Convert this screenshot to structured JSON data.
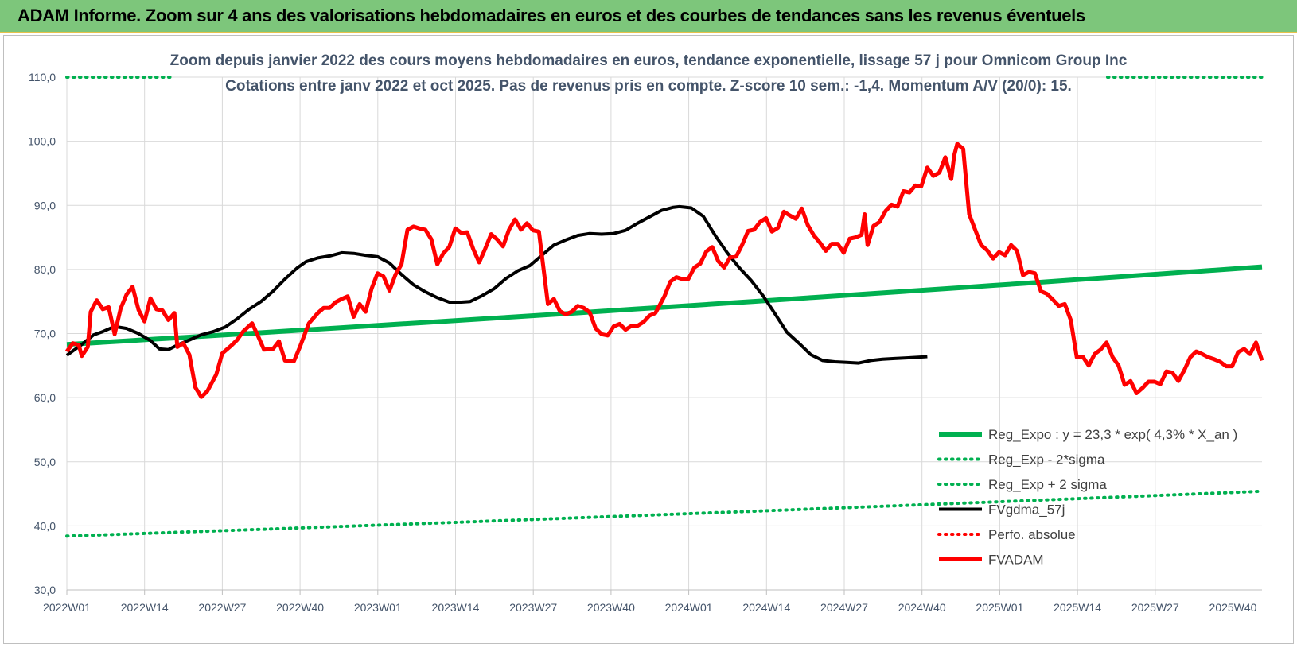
{
  "header": {
    "title": "ADAM Informe. Zoom sur 4 ans des valorisations hebdomadaires en euros et des courbes de tendances sans les revenus éventuels"
  },
  "chart_data": {
    "type": "line",
    "title": "Zoom depuis janvier 2022 des cours moyens hebdomadaires en euros, tendance exponentielle, lissage 57 j pour Omnicom Group Inc",
    "subtitle": "Cotations entre janv 2022 et oct 2025. Pas de revenus pris en compte. Z-score 10 sem.: -1,4. Momentum A/V (20/0): 15.",
    "xlabel": "",
    "ylabel": "",
    "ylim": [
      30,
      110
    ],
    "yticks": [
      "30,0",
      "40,0",
      "50,0",
      "60,0",
      "70,0",
      "80,0",
      "90,0",
      "100,0",
      "110,0"
    ],
    "x_tick_labels": [
      "2022W01",
      "2022W14",
      "2022W27",
      "2022W40",
      "2023W01",
      "2023W14",
      "2023W27",
      "2023W40",
      "2024W01",
      "2024W14",
      "2024W27",
      "2024W40",
      "2025W01",
      "2025W14",
      "2025W27",
      "2025W40"
    ],
    "n_weeks": 198,
    "grid": true,
    "legend_position": "bottom-right",
    "series": [
      {
        "name": "Reg_Expo : y = 23,3 * exp( 4,3% * X_an )",
        "color": "#00b050",
        "style": "solid",
        "start": 68.3,
        "end": 80.4
      },
      {
        "name": "Reg_Exp - 2*sigma",
        "color": "#00b050",
        "style": "dotted",
        "start": 38.4,
        "end": 45.4
      },
      {
        "name": "Reg_Exp + 2 sigma",
        "color": "#00b050",
        "style": "dotted",
        "start": 110.0,
        "end": 110.0
      },
      {
        "name": "FVgdma_57j",
        "color": "#000000",
        "style": "solid",
        "points": [
          [
            0,
            66.6
          ],
          [
            5,
            68.3
          ],
          [
            9,
            69.8
          ],
          [
            12,
            70.3
          ],
          [
            16,
            71.1
          ],
          [
            20,
            70.8
          ],
          [
            24,
            70.0
          ],
          [
            28,
            68.9
          ],
          [
            31,
            67.6
          ],
          [
            34,
            67.5
          ],
          [
            37,
            68.2
          ],
          [
            41,
            69.0
          ],
          [
            45,
            69.8
          ],
          [
            49,
            70.3
          ],
          [
            53,
            71.0
          ],
          [
            57,
            72.3
          ],
          [
            61,
            73.8
          ],
          [
            65,
            75.0
          ],
          [
            69,
            76.6
          ],
          [
            73,
            78.5
          ],
          [
            77,
            80.2
          ],
          [
            80,
            81.2
          ],
          [
            84,
            81.8
          ],
          [
            88,
            82.1
          ],
          [
            92,
            82.6
          ],
          [
            96,
            82.5
          ],
          [
            100,
            82.2
          ],
          [
            104,
            82.0
          ],
          [
            108,
            81.0
          ],
          [
            112,
            79.2
          ],
          [
            116,
            77.6
          ],
          [
            120,
            76.5
          ],
          [
            124,
            75.6
          ],
          [
            128,
            74.9
          ],
          [
            132,
            74.9
          ],
          [
            135,
            75.0
          ],
          [
            139,
            75.9
          ],
          [
            143,
            77.0
          ],
          [
            147,
            78.6
          ],
          [
            151,
            79.8
          ],
          [
            155,
            80.6
          ],
          [
            159,
            82.2
          ],
          [
            163,
            83.8
          ],
          [
            167,
            84.6
          ],
          [
            171,
            85.3
          ],
          [
            175,
            85.6
          ],
          [
            179,
            85.5
          ],
          [
            183,
            85.6
          ],
          [
            187,
            86.1
          ],
          [
            191,
            87.2
          ],
          [
            195,
            88.2
          ],
          [
            199,
            89.2
          ],
          [
            203,
            89.7
          ],
          [
            205,
            89.8
          ],
          [
            209,
            89.6
          ],
          [
            213,
            88.3
          ],
          [
            217,
            85.3
          ],
          [
            221,
            82.6
          ],
          [
            225,
            80.3
          ],
          [
            229,
            78.3
          ],
          [
            233,
            75.9
          ],
          [
            237,
            73.1
          ],
          [
            241,
            70.2
          ],
          [
            245,
            68.5
          ],
          [
            249,
            66.7
          ],
          [
            253,
            65.8
          ],
          [
            257,
            65.6
          ],
          [
            261,
            65.5
          ],
          [
            265,
            65.4
          ],
          [
            269,
            65.8
          ],
          [
            273,
            66.0
          ],
          [
            277,
            66.1
          ],
          [
            281,
            66.2
          ],
          [
            285,
            66.3
          ],
          [
            288,
            66.4
          ]
        ]
      },
      {
        "name": "Perfo. absolue",
        "color": "#ff0000",
        "style": "dotted",
        "points": []
      },
      {
        "name": "FVADAM",
        "color": "#ff0000",
        "style": "solid",
        "points": [
          [
            0,
            67.2
          ],
          [
            2,
            68.5
          ],
          [
            4,
            68.2
          ],
          [
            5,
            66.5
          ],
          [
            7,
            67.9
          ],
          [
            8,
            73.4
          ],
          [
            10,
            75.2
          ],
          [
            12,
            73.8
          ],
          [
            14,
            74.1
          ],
          [
            16,
            69.9
          ],
          [
            18,
            73.9
          ],
          [
            20,
            76.1
          ],
          [
            22,
            77.3
          ],
          [
            24,
            73.7
          ],
          [
            26,
            71.9
          ],
          [
            28,
            75.5
          ],
          [
            30,
            73.8
          ],
          [
            32,
            73.6
          ],
          [
            34,
            72.1
          ],
          [
            36,
            73.2
          ],
          [
            37,
            67.9
          ],
          [
            39,
            68.5
          ],
          [
            41,
            66.7
          ],
          [
            43,
            61.6
          ],
          [
            45,
            60.1
          ],
          [
            47,
            61.0
          ],
          [
            50,
            63.6
          ],
          [
            52,
            66.9
          ],
          [
            55,
            68.1
          ],
          [
            57,
            69.0
          ],
          [
            59,
            70.3
          ],
          [
            62,
            71.6
          ],
          [
            64,
            69.6
          ],
          [
            66,
            67.5
          ],
          [
            69,
            67.6
          ],
          [
            71,
            68.8
          ],
          [
            73,
            65.8
          ],
          [
            76,
            65.7
          ],
          [
            78,
            67.9
          ],
          [
            81,
            71.6
          ],
          [
            84,
            73.2
          ],
          [
            86,
            74.0
          ],
          [
            88,
            74.0
          ],
          [
            90,
            74.9
          ],
          [
            92,
            75.4
          ],
          [
            94,
            75.8
          ],
          [
            96,
            72.6
          ],
          [
            98,
            74.6
          ],
          [
            100,
            73.4
          ],
          [
            102,
            77.0
          ],
          [
            104,
            79.4
          ],
          [
            106,
            78.9
          ],
          [
            108,
            76.7
          ],
          [
            110,
            79.2
          ],
          [
            112,
            80.8
          ],
          [
            114,
            86.2
          ],
          [
            116,
            86.7
          ],
          [
            118,
            86.4
          ],
          [
            120,
            86.2
          ],
          [
            122,
            84.7
          ],
          [
            124,
            80.8
          ],
          [
            126,
            82.5
          ],
          [
            128,
            83.5
          ],
          [
            130,
            86.4
          ],
          [
            132,
            85.7
          ],
          [
            134,
            85.8
          ],
          [
            136,
            83.2
          ],
          [
            138,
            81.1
          ],
          [
            140,
            83.2
          ],
          [
            142,
            85.5
          ],
          [
            144,
            84.7
          ],
          [
            146,
            83.6
          ],
          [
            148,
            86.2
          ],
          [
            150,
            87.8
          ],
          [
            152,
            86.2
          ],
          [
            154,
            87.2
          ],
          [
            156,
            86.1
          ],
          [
            158,
            85.9
          ],
          [
            159,
            82.2
          ],
          [
            161,
            74.6
          ],
          [
            163,
            75.4
          ],
          [
            165,
            73.5
          ],
          [
            167,
            73.0
          ],
          [
            169,
            73.4
          ],
          [
            171,
            74.3
          ],
          [
            173,
            74.0
          ],
          [
            175,
            73.3
          ],
          [
            177,
            70.8
          ],
          [
            179,
            69.9
          ],
          [
            181,
            69.7
          ],
          [
            183,
            71.1
          ],
          [
            185,
            71.5
          ],
          [
            187,
            70.6
          ],
          [
            189,
            71.2
          ],
          [
            191,
            71.2
          ],
          [
            193,
            71.8
          ],
          [
            195,
            72.8
          ],
          [
            197,
            73.2
          ],
          [
            200,
            75.8
          ],
          [
            202,
            78.1
          ],
          [
            204,
            78.8
          ],
          [
            206,
            78.5
          ],
          [
            208,
            78.5
          ],
          [
            210,
            80.3
          ],
          [
            212,
            80.9
          ],
          [
            214,
            82.8
          ],
          [
            216,
            83.5
          ],
          [
            218,
            81.3
          ],
          [
            220,
            80.3
          ],
          [
            222,
            81.9
          ],
          [
            224,
            82.0
          ],
          [
            226,
            83.8
          ],
          [
            228,
            86.0
          ],
          [
            230,
            86.2
          ],
          [
            232,
            87.4
          ],
          [
            234,
            88.0
          ],
          [
            236,
            85.9
          ],
          [
            238,
            86.5
          ],
          [
            240,
            89.0
          ],
          [
            242,
            88.4
          ],
          [
            244,
            87.9
          ],
          [
            246,
            89.5
          ],
          [
            248,
            86.9
          ],
          [
            250,
            85.3
          ],
          [
            252,
            84.2
          ],
          [
            254,
            82.9
          ],
          [
            256,
            84.0
          ],
          [
            258,
            84.0
          ],
          [
            260,
            82.6
          ],
          [
            262,
            84.8
          ],
          [
            264,
            85.0
          ],
          [
            266,
            85.4
          ],
          [
            267,
            88.6
          ],
          [
            268,
            83.8
          ],
          [
            270,
            86.8
          ],
          [
            272,
            87.4
          ],
          [
            274,
            89.1
          ],
          [
            276,
            90.1
          ],
          [
            278,
            89.8
          ],
          [
            280,
            92.2
          ],
          [
            282,
            92.0
          ],
          [
            284,
            93.1
          ],
          [
            286,
            93.0
          ],
          [
            288,
            95.9
          ],
          [
            290,
            94.6
          ],
          [
            292,
            95.1
          ],
          [
            294,
            97.5
          ],
          [
            296,
            94.1
          ],
          [
            297,
            97.8
          ],
          [
            298,
            99.6
          ],
          [
            300,
            98.8
          ],
          [
            302,
            88.6
          ],
          [
            304,
            86.2
          ],
          [
            306,
            83.8
          ],
          [
            308,
            83.0
          ],
          [
            310,
            81.7
          ],
          [
            312,
            82.7
          ],
          [
            314,
            82.2
          ],
          [
            316,
            83.8
          ],
          [
            318,
            82.9
          ],
          [
            320,
            79.1
          ],
          [
            322,
            79.6
          ],
          [
            324,
            79.4
          ],
          [
            326,
            76.6
          ],
          [
            328,
            76.2
          ],
          [
            330,
            75.3
          ],
          [
            332,
            74.3
          ],
          [
            334,
            74.6
          ],
          [
            336,
            72.1
          ],
          [
            338,
            66.3
          ],
          [
            340,
            66.4
          ],
          [
            342,
            65.0
          ],
          [
            344,
            66.8
          ],
          [
            346,
            67.5
          ],
          [
            348,
            68.6
          ],
          [
            350,
            66.3
          ],
          [
            352,
            65.0
          ],
          [
            354,
            62.0
          ],
          [
            356,
            62.6
          ],
          [
            358,
            60.7
          ],
          [
            360,
            61.5
          ],
          [
            362,
            62.5
          ],
          [
            364,
            62.5
          ],
          [
            366,
            62.1
          ],
          [
            368,
            64.1
          ],
          [
            370,
            63.9
          ],
          [
            372,
            62.6
          ],
          [
            374,
            64.3
          ],
          [
            376,
            66.3
          ],
          [
            378,
            67.2
          ],
          [
            380,
            66.8
          ],
          [
            382,
            66.3
          ],
          [
            384,
            66.0
          ],
          [
            386,
            65.6
          ],
          [
            388,
            64.9
          ],
          [
            390,
            64.9
          ],
          [
            392,
            67.1
          ],
          [
            394,
            67.6
          ],
          [
            396,
            66.8
          ],
          [
            398,
            68.6
          ],
          [
            400,
            65.8
          ]
        ]
      }
    ]
  }
}
